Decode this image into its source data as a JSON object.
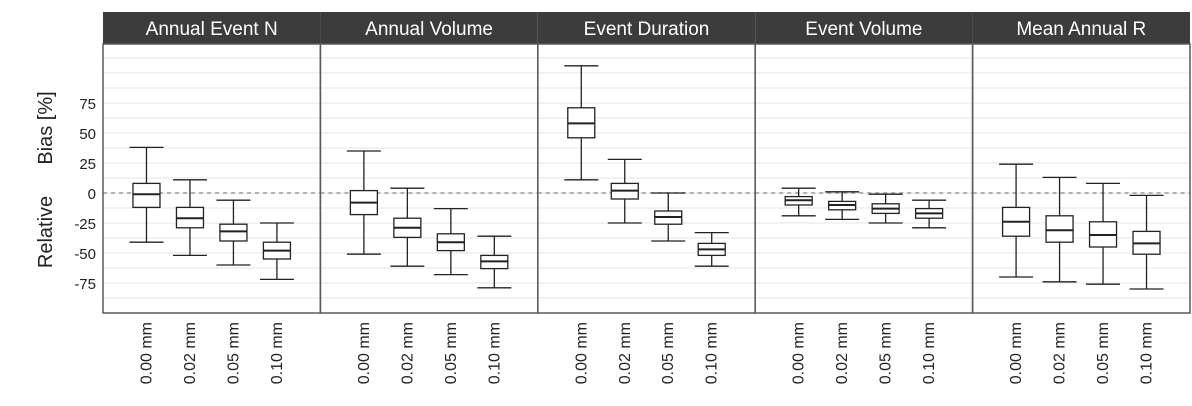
{
  "chart_data": {
    "type": "boxplot",
    "ylabel_parts": [
      "Relative",
      "Bias [%]"
    ],
    "y_ticks": [
      75,
      50,
      25,
      0,
      -25,
      -50,
      -75
    ],
    "ylim": [
      -100,
      120
    ],
    "reference_line": 0,
    "grid": true,
    "categories": [
      "0.00 mm",
      "0.02 mm",
      "0.05 mm",
      "0.10 mm"
    ],
    "panels": [
      {
        "title": "Annual Event N",
        "boxes": [
          {
            "min": -41,
            "q1": -12,
            "median": -1,
            "q3": 8,
            "max": 38
          },
          {
            "min": -52,
            "q1": -29,
            "median": -21,
            "q3": -12,
            "max": 11
          },
          {
            "min": -60,
            "q1": -40,
            "median": -32,
            "q3": -26,
            "max": -6
          },
          {
            "min": -72,
            "q1": -55,
            "median": -48,
            "q3": -41,
            "max": -25
          }
        ]
      },
      {
        "title": "Annual Volume",
        "boxes": [
          {
            "min": -51,
            "q1": -18,
            "median": -8,
            "q3": 2,
            "max": 35
          },
          {
            "min": -61,
            "q1": -37,
            "median": -29,
            "q3": -21,
            "max": 4
          },
          {
            "min": -68,
            "q1": -48,
            "median": -41,
            "q3": -34,
            "max": -13
          },
          {
            "min": -79,
            "q1": -63,
            "median": -57,
            "q3": -52,
            "max": -36
          }
        ]
      },
      {
        "title": "Event Duration",
        "boxes": [
          {
            "min": 11,
            "q1": 46,
            "median": 58,
            "q3": 71,
            "max": 106
          },
          {
            "min": -25,
            "q1": -5,
            "median": 2,
            "q3": 8,
            "max": 28
          },
          {
            "min": -40,
            "q1": -26,
            "median": -20,
            "q3": -15,
            "max": 0
          },
          {
            "min": -61,
            "q1": -52,
            "median": -47,
            "q3": -42,
            "max": -33
          }
        ]
      },
      {
        "title": "Event Volume",
        "boxes": [
          {
            "min": -19,
            "q1": -10,
            "median": -6,
            "q3": -3,
            "max": 4
          },
          {
            "min": -22,
            "q1": -14,
            "median": -10,
            "q3": -7,
            "max": 1
          },
          {
            "min": -25,
            "q1": -17,
            "median": -13,
            "q3": -9,
            "max": -1
          },
          {
            "min": -29,
            "q1": -21,
            "median": -17,
            "q3": -13,
            "max": -6
          }
        ]
      },
      {
        "title": "Mean Annual R",
        "boxes": [
          {
            "min": -70,
            "q1": -36,
            "median": -24,
            "q3": -12,
            "max": 24
          },
          {
            "min": -74,
            "q1": -41,
            "median": -31,
            "q3": -19,
            "max": 13
          },
          {
            "min": -76,
            "q1": -45,
            "median": -35,
            "q3": -24,
            "max": 8
          },
          {
            "min": -80,
            "q1": -51,
            "median": -42,
            "q3": -32,
            "max": -2
          }
        ]
      }
    ],
    "colors": {
      "strip_bg": "#3c3c3c",
      "strip_text": "#ffffff",
      "panel_border": "#5a5a5a",
      "gridline": "#e5e5e5",
      "reference_line": "#999999",
      "box_stroke": "#222222",
      "axis_text": "#222222"
    }
  }
}
